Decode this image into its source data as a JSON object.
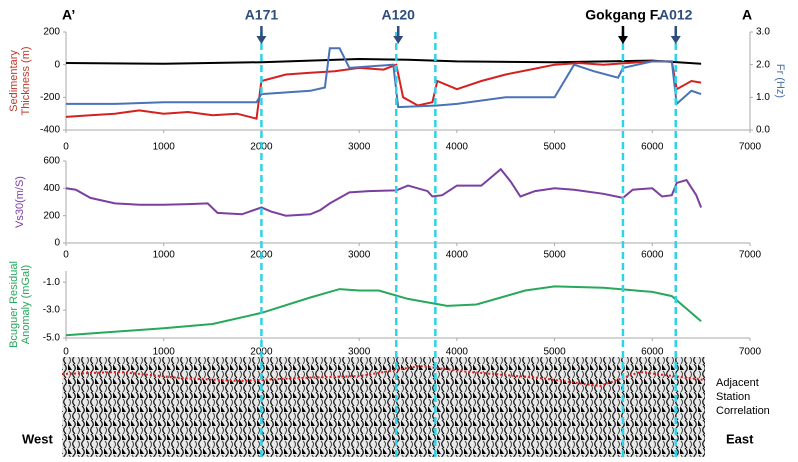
{
  "chart_data": [
    {
      "type": "line",
      "ylabel": [
        "Sedimentary",
        "Thickness (m)"
      ],
      "ylabel_color": "#c0392b",
      "y2label": "Fr (Hz)",
      "y2label_color": "#4a6fa5",
      "xlim": [
        0,
        7000
      ],
      "xticks": [
        0,
        1000,
        2000,
        3000,
        4000,
        5000,
        6000,
        7000
      ],
      "ylim": [
        -400,
        200
      ],
      "yticks": [
        -400,
        -200,
        0,
        200
      ],
      "y2lim": [
        0,
        3
      ],
      "y2ticks": [
        {
          "value": 0,
          "label": "0.0"
        },
        {
          "value": 1,
          "label": "1.0"
        },
        {
          "value": 2,
          "label": "2.0"
        },
        {
          "value": 3,
          "label": "3.0"
        }
      ],
      "series": [
        {
          "color": "#000000",
          "x": [
            0,
            1000,
            2000,
            3000,
            3500,
            4000,
            5000,
            6000,
            6500
          ],
          "values": [
            10,
            5,
            15,
            35,
            30,
            20,
            15,
            25,
            5
          ]
        },
        {
          "color": "#d62020",
          "x": [
            0,
            250,
            500,
            750,
            1000,
            1250,
            1500,
            1750,
            1950,
            2000,
            2250,
            2500,
            2750,
            3000,
            3250,
            3380,
            3450,
            3600,
            3750,
            3800,
            4000,
            4250,
            4500,
            4750,
            5000,
            5250,
            5500,
            5750,
            6000,
            6200,
            6250,
            6400,
            6500
          ],
          "values": [
            -320,
            -310,
            -300,
            -280,
            -300,
            -290,
            -310,
            -300,
            -330,
            -100,
            -60,
            -50,
            -40,
            -20,
            -30,
            0,
            -200,
            -250,
            -230,
            -100,
            -150,
            -100,
            -60,
            -30,
            0,
            10,
            0,
            10,
            20,
            20,
            -150,
            -100,
            -110
          ]
        },
        {
          "color": "#4a72b8",
          "axis": "y2",
          "x": [
            0,
            500,
            1000,
            1500,
            1950,
            2000,
            2500,
            2650,
            2700,
            2800,
            2900,
            3350,
            3400,
            3800,
            4000,
            4500,
            5000,
            5200,
            5400,
            5650,
            5700,
            6000,
            6200,
            6250,
            6400,
            6500
          ],
          "values": [
            0.8,
            0.8,
            0.85,
            0.85,
            0.85,
            1.1,
            1.2,
            1.3,
            2.5,
            2.5,
            1.9,
            2.0,
            0.7,
            0.75,
            0.8,
            1.0,
            1.0,
            2.0,
            1.8,
            1.6,
            1.9,
            2.1,
            2.1,
            0.8,
            1.2,
            1.1
          ]
        }
      ]
    },
    {
      "type": "line",
      "ylabel": [
        "Vs30(m/S)"
      ],
      "ylabel_color": "#7b3fa0",
      "xlim": [
        0,
        7000
      ],
      "xticks": [
        0,
        1000,
        2000,
        3000,
        4000,
        5000,
        6000,
        7000
      ],
      "ylim": [
        0,
        600
      ],
      "yticks": [
        0,
        200,
        400,
        600
      ],
      "series": [
        {
          "color": "#7b3fa0",
          "x": [
            0,
            100,
            250,
            500,
            750,
            1000,
            1250,
            1450,
            1550,
            1800,
            2000,
            2100,
            2250,
            2500,
            2600,
            2700,
            2900,
            3100,
            3380,
            3500,
            3700,
            3750,
            3850,
            4000,
            4250,
            4350,
            4450,
            4550,
            4650,
            4800,
            5000,
            5200,
            5500,
            5700,
            5800,
            6000,
            6100,
            6200,
            6250,
            6350,
            6450,
            6500
          ],
          "values": [
            400,
            390,
            330,
            290,
            280,
            280,
            285,
            290,
            220,
            210,
            260,
            230,
            200,
            210,
            240,
            290,
            370,
            380,
            385,
            420,
            380,
            340,
            350,
            420,
            420,
            480,
            540,
            450,
            340,
            380,
            400,
            390,
            360,
            330,
            390,
            400,
            340,
            350,
            440,
            460,
            350,
            260
          ]
        }
      ]
    },
    {
      "type": "line",
      "ylabel": [
        "Bcuguer Residual",
        "Anomaly (mGal)"
      ],
      "ylabel_color": "#27a85a",
      "xlim": [
        0,
        7000
      ],
      "xticks": [
        0,
        1000,
        2000,
        3000,
        4000,
        5000,
        6000,
        7000
      ],
      "ylim": [
        -5,
        -0.2
      ],
      "yticks": [
        {
          "value": -5,
          "label": "-5.0"
        },
        {
          "value": -3,
          "label": "-3.0"
        },
        {
          "value": -1,
          "label": "-1.0"
        }
      ],
      "series": [
        {
          "color": "#27a85a",
          "x": [
            0,
            1000,
            1500,
            2000,
            2500,
            2800,
            3000,
            3200,
            3500,
            3900,
            4200,
            4700,
            5000,
            5500,
            6000,
            6200,
            6500
          ],
          "values": [
            -4.8,
            -4.3,
            -4.0,
            -3.2,
            -2.1,
            -1.5,
            -1.6,
            -1.6,
            -2.2,
            -2.7,
            -2.6,
            -1.6,
            -1.3,
            -1.4,
            -1.7,
            -2.0,
            -3.8
          ]
        }
      ]
    }
  ],
  "markers": [
    {
      "label": "A171",
      "x": 2000,
      "color": "#2e4d7b"
    },
    {
      "label": "A120",
      "x": 3400,
      "color": "#2e4d7b"
    },
    {
      "label": "Gokgang F.",
      "x": 5700,
      "color": "#000000"
    },
    {
      "label": "A012",
      "x": 6240,
      "color": "#2e4d7b"
    }
  ],
  "boundaries": [
    2000,
    3380,
    3780,
    5700,
    6240
  ],
  "section": {
    "left": "A’",
    "right": "A"
  },
  "seismic": {
    "west": "West",
    "east": "East",
    "note": [
      "Adjacent",
      "Station",
      "Correlation"
    ]
  }
}
